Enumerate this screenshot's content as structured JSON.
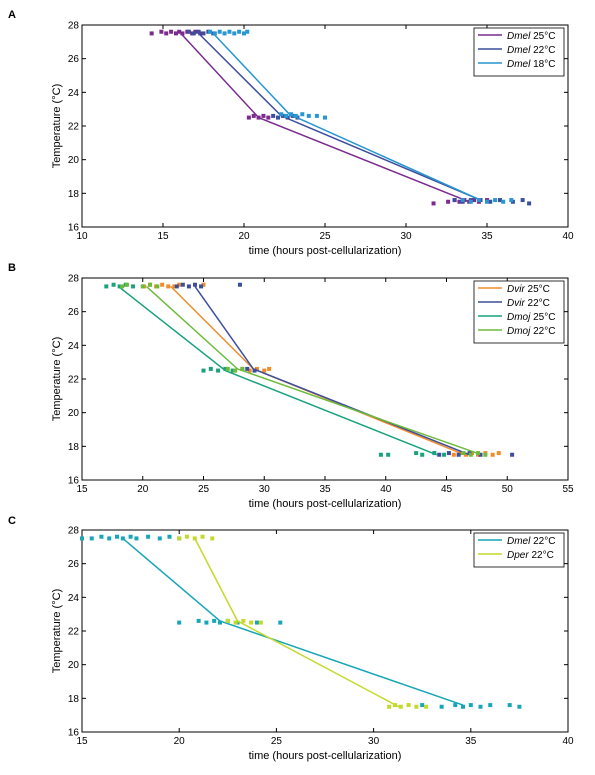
{
  "chart_data": [
    {
      "panel": "A",
      "type": "scatter",
      "xlabel": "time (hours post-cellularization)",
      "ylabel": "Temperature (°C)",
      "xlim": [
        10,
        40
      ],
      "ylim": [
        16,
        28
      ],
      "xticks": [
        "10",
        "15",
        "20",
        "25",
        "30",
        "35",
        "40"
      ],
      "yticks": [
        "16",
        "18",
        "20",
        "22",
        "24",
        "26",
        "28"
      ],
      "legend_position": "top-right",
      "series": [
        {
          "name_italic": "Dmel",
          "name_rest": " 25°C",
          "color": "#7b2a8e",
          "line": [
            [
              16.1,
              27.5
            ],
            [
              20.9,
              22.5
            ],
            [
              33.9,
              17.5
            ]
          ],
          "points": [
            [
              14.3,
              27.5
            ],
            [
              14.9,
              27.6
            ],
            [
              15.2,
              27.5
            ],
            [
              15.5,
              27.6
            ],
            [
              15.8,
              27.5
            ],
            [
              16.0,
              27.6
            ],
            [
              16.2,
              27.5
            ],
            [
              16.5,
              27.6
            ],
            [
              16.8,
              27.5
            ],
            [
              17.0,
              27.6
            ],
            [
              17.3,
              27.5
            ],
            [
              20.3,
              22.5
            ],
            [
              20.6,
              22.6
            ],
            [
              20.9,
              22.5
            ],
            [
              21.2,
              22.6
            ],
            [
              21.5,
              22.5
            ],
            [
              31.7,
              17.4
            ],
            [
              32.6,
              17.5
            ],
            [
              33.0,
              17.6
            ],
            [
              33.3,
              17.5
            ],
            [
              33.6,
              17.6
            ],
            [
              33.9,
              17.5
            ],
            [
              34.2,
              17.6
            ],
            [
              34.5,
              17.5
            ],
            [
              35.0,
              17.6
            ]
          ]
        },
        {
          "name_italic": "Dmel",
          "name_rest": " 22°C",
          "color": "#3c4e9c",
          "line": [
            [
              17.2,
              27.5
            ],
            [
              22.3,
              22.6
            ],
            [
              34.6,
              17.6
            ]
          ],
          "points": [
            [
              16.6,
              27.6
            ],
            [
              16.9,
              27.5
            ],
            [
              17.2,
              27.6
            ],
            [
              17.5,
              27.5
            ],
            [
              17.8,
              27.6
            ],
            [
              18.1,
              27.5
            ],
            [
              21.8,
              22.6
            ],
            [
              22.1,
              22.5
            ],
            [
              22.4,
              22.6
            ],
            [
              22.7,
              22.5
            ],
            [
              23.0,
              22.6
            ],
            [
              23.3,
              22.5
            ],
            [
              33.0,
              17.6
            ],
            [
              33.5,
              17.5
            ],
            [
              34.0,
              17.6
            ],
            [
              34.6,
              17.6
            ],
            [
              35.2,
              17.5
            ],
            [
              35.8,
              17.6
            ],
            [
              36.6,
              17.5
            ],
            [
              37.2,
              17.6
            ],
            [
              37.6,
              17.4
            ]
          ]
        },
        {
          "name_italic": "Dmel",
          "name_rest": " 18°C",
          "color": "#2896d0",
          "line": [
            [
              18.1,
              27.5
            ],
            [
              22.8,
              22.7
            ],
            [
              34.6,
              17.6
            ]
          ],
          "points": [
            [
              17.9,
              27.6
            ],
            [
              18.2,
              27.5
            ],
            [
              18.5,
              27.6
            ],
            [
              18.8,
              27.5
            ],
            [
              19.1,
              27.6
            ],
            [
              19.4,
              27.5
            ],
            [
              19.7,
              27.6
            ],
            [
              20.0,
              27.5
            ],
            [
              20.2,
              27.6
            ],
            [
              22.3,
              22.7
            ],
            [
              22.6,
              22.6
            ],
            [
              22.9,
              22.7
            ],
            [
              23.2,
              22.6
            ],
            [
              23.6,
              22.7
            ],
            [
              24.0,
              22.6
            ],
            [
              24.5,
              22.6
            ],
            [
              25.0,
              22.5
            ],
            [
              33.5,
              17.6
            ],
            [
              34.0,
              17.5
            ],
            [
              34.5,
              17.6
            ],
            [
              35.0,
              17.5
            ],
            [
              35.5,
              17.6
            ],
            [
              36.0,
              17.5
            ],
            [
              36.5,
              17.6
            ]
          ]
        }
      ]
    },
    {
      "panel": "B",
      "type": "scatter",
      "xlabel": "time (hours post-cellularization)",
      "ylabel": "Temperature (°C)",
      "xlim": [
        15,
        55
      ],
      "ylim": [
        16,
        28
      ],
      "xticks": [
        "15",
        "20",
        "25",
        "30",
        "35",
        "40",
        "45",
        "50",
        "55"
      ],
      "yticks": [
        "16",
        "18",
        "20",
        "22",
        "24",
        "26",
        "28"
      ],
      "legend_position": "top-right",
      "series": [
        {
          "name_italic": "Dvir",
          "name_rest": " 25°C",
          "color": "#f28c28",
          "line": [
            [
              22.3,
              27.5
            ],
            [
              29.1,
              22.6
            ],
            [
              46.5,
              17.5
            ]
          ],
          "points": [
            [
              20.1,
              27.5
            ],
            [
              20.6,
              27.6
            ],
            [
              21.1,
              27.5
            ],
            [
              21.6,
              27.6
            ],
            [
              22.1,
              27.5
            ],
            [
              22.6,
              27.5
            ],
            [
              23.0,
              27.6
            ],
            [
              25.0,
              27.6
            ],
            [
              27.6,
              22.5
            ],
            [
              28.2,
              22.6
            ],
            [
              28.8,
              22.5
            ],
            [
              29.4,
              22.6
            ],
            [
              30.0,
              22.5
            ],
            [
              30.4,
              22.6
            ],
            [
              45.6,
              17.5
            ],
            [
              46.1,
              17.6
            ],
            [
              46.6,
              17.5
            ],
            [
              47.1,
              17.6
            ],
            [
              47.6,
              17.5
            ],
            [
              48.2,
              17.6
            ],
            [
              48.8,
              17.5
            ],
            [
              49.3,
              17.6
            ]
          ]
        },
        {
          "name_italic": "Dvir",
          "name_rest": " 22°C",
          "color": "#3c4e9c",
          "line": [
            [
              24.3,
              27.5
            ],
            [
              29.1,
              22.6
            ],
            [
              46.9,
              17.5
            ]
          ],
          "points": [
            [
              22.8,
              27.5
            ],
            [
              23.3,
              27.6
            ],
            [
              23.8,
              27.5
            ],
            [
              24.3,
              27.6
            ],
            [
              24.8,
              27.5
            ],
            [
              28.0,
              27.6
            ],
            [
              28.6,
              22.6
            ],
            [
              29.2,
              22.5
            ],
            [
              44.4,
              17.5
            ],
            [
              45.2,
              17.6
            ],
            [
              46.0,
              17.5
            ],
            [
              46.9,
              17.6
            ],
            [
              47.8,
              17.5
            ],
            [
              50.4,
              17.5
            ]
          ]
        },
        {
          "name_italic": "Dmoj",
          "name_rest": " 25°C",
          "color": "#1aa27e",
          "line": [
            [
              18.0,
              27.5
            ],
            [
              26.8,
              22.5
            ],
            [
              44.2,
              17.5
            ]
          ],
          "points": [
            [
              17.0,
              27.5
            ],
            [
              17.6,
              27.6
            ],
            [
              18.1,
              27.5
            ],
            [
              18.6,
              27.6
            ],
            [
              19.2,
              27.5
            ],
            [
              25.0,
              22.5
            ],
            [
              25.6,
              22.6
            ],
            [
              26.2,
              22.5
            ],
            [
              26.8,
              22.6
            ],
            [
              27.4,
              22.5
            ],
            [
              39.6,
              17.5
            ],
            [
              40.2,
              17.5
            ],
            [
              42.5,
              17.6
            ],
            [
              43.0,
              17.5
            ],
            [
              44.0,
              17.6
            ],
            [
              44.8,
              17.5
            ]
          ]
        },
        {
          "name_italic": "Dmoj",
          "name_rest": " 22°C",
          "color": "#6cbb3c",
          "line": [
            [
              20.3,
              27.5
            ],
            [
              27.8,
              22.6
            ],
            [
              47.5,
              17.6
            ]
          ],
          "points": [
            [
              18.3,
              27.5
            ],
            [
              18.7,
              27.6
            ],
            [
              20.0,
              27.5
            ],
            [
              20.6,
              27.6
            ],
            [
              21.2,
              27.5
            ],
            [
              27.0,
              22.6
            ],
            [
              27.6,
              22.5
            ],
            [
              28.2,
              22.6
            ],
            [
              46.4,
              17.6
            ],
            [
              47.0,
              17.5
            ],
            [
              47.6,
              17.6
            ],
            [
              48.2,
              17.5
            ]
          ]
        }
      ]
    },
    {
      "panel": "C",
      "type": "scatter",
      "xlabel": "time (hours post-cellularization)",
      "ylabel": "Temperature (°C)",
      "xlim": [
        15,
        40
      ],
      "ylim": [
        16,
        28
      ],
      "xticks": [
        "15",
        "20",
        "25",
        "30",
        "35",
        "40"
      ],
      "yticks": [
        "16",
        "18",
        "20",
        "22",
        "24",
        "26",
        "28"
      ],
      "legend_position": "top-right",
      "series": [
        {
          "name_italic": "Dmel",
          "name_rest": " 22°C",
          "color": "#17a6b8",
          "line": [
            [
              17.1,
              27.5
            ],
            [
              22.1,
              22.6
            ],
            [
              34.6,
              17.6
            ]
          ],
          "points": [
            [
              15.0,
              27.5
            ],
            [
              15.5,
              27.5
            ],
            [
              16.0,
              27.6
            ],
            [
              16.4,
              27.5
            ],
            [
              16.8,
              27.6
            ],
            [
              17.1,
              27.5
            ],
            [
              17.5,
              27.6
            ],
            [
              17.8,
              27.5
            ],
            [
              18.4,
              27.6
            ],
            [
              19.0,
              27.5
            ],
            [
              19.5,
              27.6
            ],
            [
              20.0,
              27.5
            ],
            [
              20.0,
              22.5
            ],
            [
              21.0,
              22.6
            ],
            [
              21.4,
              22.5
            ],
            [
              21.8,
              22.6
            ],
            [
              22.1,
              22.5
            ],
            [
              22.5,
              22.6
            ],
            [
              23.0,
              22.5
            ],
            [
              24.0,
              22.5
            ],
            [
              25.2,
              22.5
            ],
            [
              32.5,
              17.6
            ],
            [
              33.5,
              17.5
            ],
            [
              34.2,
              17.6
            ],
            [
              34.6,
              17.5
            ],
            [
              35.0,
              17.6
            ],
            [
              35.5,
              17.5
            ],
            [
              36.0,
              17.6
            ],
            [
              37.0,
              17.6
            ],
            [
              37.5,
              17.5
            ]
          ]
        },
        {
          "name_italic": "Dper",
          "name_rest": " 22°C",
          "color": "#c5d92b",
          "line": [
            [
              20.8,
              27.5
            ],
            [
              23.0,
              22.6
            ],
            [
              31.3,
              17.5
            ]
          ],
          "points": [
            [
              20.0,
              27.5
            ],
            [
              20.4,
              27.6
            ],
            [
              20.8,
              27.5
            ],
            [
              21.2,
              27.6
            ],
            [
              21.7,
              27.5
            ],
            [
              22.5,
              22.6
            ],
            [
              22.9,
              22.5
            ],
            [
              23.3,
              22.6
            ],
            [
              23.7,
              22.5
            ],
            [
              24.2,
              22.5
            ],
            [
              30.8,
              17.5
            ],
            [
              31.1,
              17.6
            ],
            [
              31.4,
              17.5
            ],
            [
              31.8,
              17.6
            ],
            [
              32.2,
              17.5
            ],
            [
              32.7,
              17.5
            ]
          ]
        }
      ]
    }
  ]
}
